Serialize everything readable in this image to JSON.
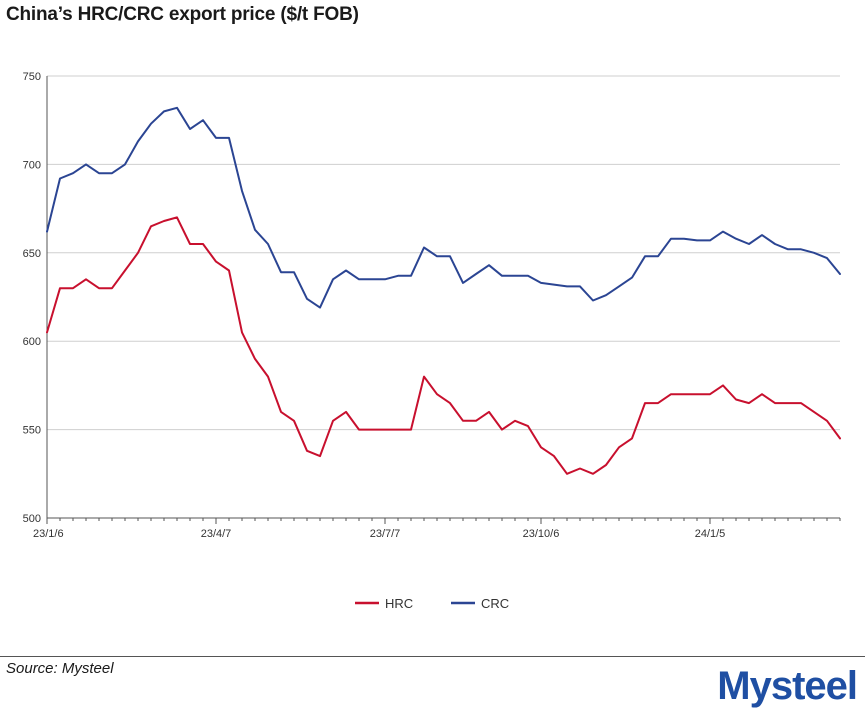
{
  "title": "China’s HRC/CRC export price ($/t FOB)",
  "source": "Source: Mysteel",
  "logo_text": "Mysteel",
  "colors": {
    "HRC": "#c8102e",
    "CRC": "#2b4593",
    "grid": "#cfcfcf",
    "axis": "#555555"
  },
  "chart_data": {
    "type": "line",
    "title": "China’s HRC/CRC export price ($/t FOB)",
    "xlabel": "",
    "ylabel": "",
    "ylim": [
      500,
      750
    ],
    "yticks": [
      500,
      550,
      600,
      650,
      700,
      750
    ],
    "xtick_labels": [
      {
        "index": 0,
        "label": "23/1/6"
      },
      {
        "index": 13,
        "label": "23/4/7"
      },
      {
        "index": 26,
        "label": "23/7/7"
      },
      {
        "index": 38,
        "label": "23/10/6"
      },
      {
        "index": 51,
        "label": "24/1/5"
      }
    ],
    "grid": true,
    "legend": "bottom-center",
    "series": [
      {
        "name": "HRC",
        "values": [
          605,
          630,
          630,
          635,
          630,
          630,
          640,
          650,
          665,
          668,
          670,
          655,
          655,
          645,
          640,
          605,
          590,
          580,
          560,
          555,
          538,
          535,
          555,
          560,
          550,
          550,
          550,
          550,
          550,
          580,
          570,
          565,
          555,
          555,
          560,
          550,
          555,
          552,
          540,
          535,
          525,
          528,
          525,
          530,
          540,
          545,
          565,
          565,
          570,
          570,
          570,
          570,
          575,
          567,
          565,
          570,
          565,
          565,
          565,
          560,
          555,
          545
        ]
      },
      {
        "name": "CRC",
        "values": [
          662,
          692,
          695,
          700,
          695,
          695,
          700,
          713,
          723,
          730,
          732,
          720,
          725,
          715,
          715,
          685,
          663,
          655,
          639,
          639,
          624,
          619,
          635,
          640,
          635,
          635,
          635,
          637,
          637,
          653,
          648,
          648,
          633,
          638,
          643,
          637,
          637,
          637,
          633,
          632,
          631,
          631,
          623,
          626,
          631,
          636,
          648,
          648,
          658,
          658,
          657,
          657,
          662,
          658,
          655,
          660,
          655,
          652,
          652,
          650,
          647,
          638
        ]
      }
    ]
  }
}
